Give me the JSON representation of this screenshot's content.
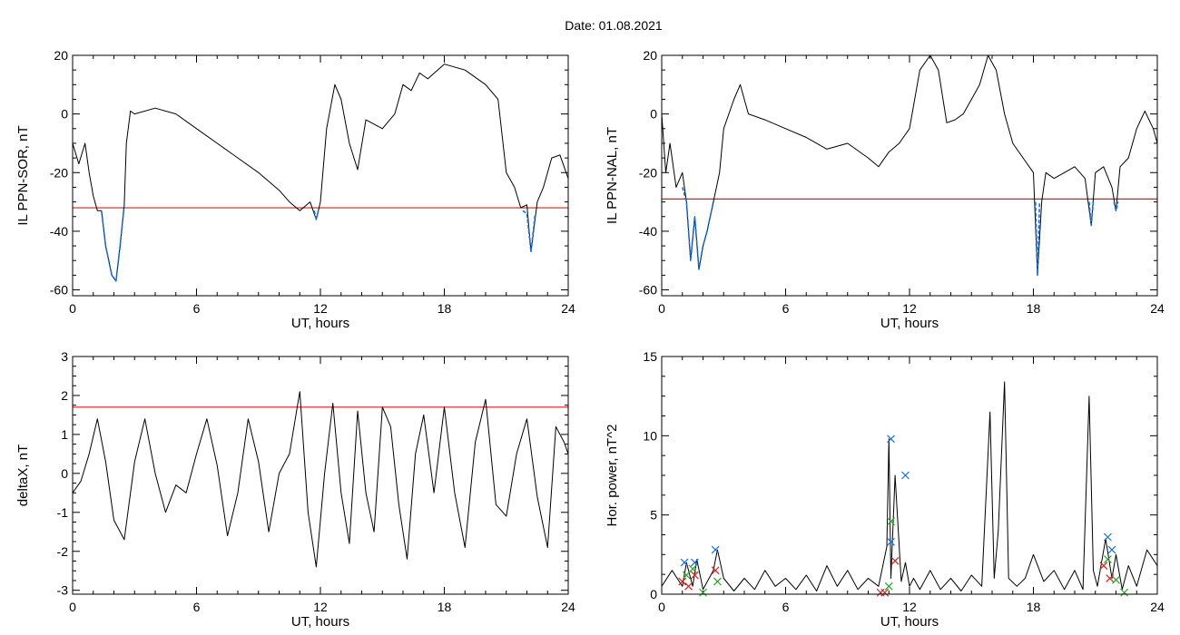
{
  "title": "Date:  01.08.2021",
  "colors": {
    "trace": "#000000",
    "threshold": "#d42020",
    "highlight": "#1a6fd4",
    "marker_blue": "#1a6fd4",
    "marker_red": "#d42020",
    "marker_green": "#2aa02a"
  },
  "chart_data": [
    {
      "type": "line",
      "panel": "top-left",
      "xlabel": "UT, hours",
      "ylabel": "IL PPN-SOR, nT",
      "xlim": [
        0,
        24
      ],
      "ylim": [
        -62,
        20
      ],
      "xticks": [
        "0",
        "6",
        "12",
        "18",
        "24"
      ],
      "yticks": [
        "-60",
        "-40",
        "-20",
        "0",
        "20"
      ],
      "threshold": -32,
      "series": [
        {
          "x": [
            0,
            0.3,
            0.6,
            0.8,
            1.0,
            1.2,
            1.4,
            1.6,
            1.9,
            2.1,
            2.3,
            2.5,
            2.6,
            2.8,
            3.0,
            4.0,
            5.0,
            6.0,
            7.0,
            8.0,
            9.0,
            10.0,
            10.5,
            11.0,
            11.5,
            11.8,
            12.0,
            12.3,
            12.7,
            13.0,
            13.4,
            13.8,
            14.2,
            15.0,
            15.6,
            16.0,
            16.4,
            16.8,
            17.2,
            18.0,
            19.0,
            20.0,
            20.6,
            21.0,
            21.4,
            21.7,
            22.0,
            22.2,
            22.5,
            22.8,
            23.2,
            23.6,
            24.0
          ],
          "y": [
            -10,
            -17,
            -10,
            -20,
            -28,
            -33,
            -33,
            -45,
            -55,
            -57,
            -45,
            -31,
            -10,
            1,
            0,
            2,
            0,
            -5,
            -10,
            -15,
            -20,
            -26,
            -30,
            -33,
            -30,
            -36,
            -30,
            -5,
            10,
            5,
            -10,
            -19,
            -2,
            -5,
            0,
            10,
            8,
            14,
            12,
            17,
            15,
            10,
            5,
            -20,
            -25,
            -32,
            -31,
            -47,
            -30,
            -25,
            -15,
            -14,
            -22
          ]
        },
        {
          "x": [
            1.4,
            1.6,
            1.9,
            2.1,
            2.3,
            2.5
          ],
          "y": [
            -33,
            -45,
            -55,
            -57,
            -45,
            -31
          ]
        },
        {
          "x": [
            11.7,
            11.8,
            11.9
          ],
          "y": [
            -33,
            -36,
            -33
          ]
        },
        {
          "x": [
            21.8,
            22.0,
            22.2,
            22.4
          ],
          "y": [
            -33,
            -34,
            -47,
            -34
          ]
        }
      ]
    },
    {
      "type": "line",
      "panel": "top-right",
      "xlabel": "UT, hours",
      "ylabel": "IL PPN-NAL, nT",
      "xlim": [
        0,
        24
      ],
      "ylim": [
        -62,
        20
      ],
      "xticks": [
        "0",
        "6",
        "12",
        "18",
        "24"
      ],
      "yticks": [
        "-60",
        "-40",
        "-20",
        "0",
        "20"
      ],
      "threshold": -29,
      "series": [
        {
          "x": [
            0,
            0.2,
            0.4,
            0.7,
            1.0,
            1.2,
            1.4,
            1.6,
            1.8,
            2.0,
            2.2,
            2.5,
            2.8,
            3.0,
            3.5,
            3.8,
            4.2,
            5.0,
            6.0,
            7.0,
            8.0,
            9.0,
            10.0,
            10.5,
            11.0,
            11.5,
            12.0,
            12.5,
            13.0,
            13.4,
            13.8,
            14.2,
            14.6,
            15.0,
            15.4,
            15.8,
            16.2,
            16.6,
            17.0,
            17.5,
            18.0,
            18.2,
            18.4,
            18.6,
            19.0,
            20.0,
            20.5,
            20.8,
            21.0,
            21.4,
            21.8,
            22.0,
            22.2,
            22.6,
            23.0,
            23.4,
            23.8,
            24.0
          ],
          "y": [
            0,
            -20,
            -10,
            -25,
            -20,
            -30,
            -50,
            -35,
            -53,
            -45,
            -40,
            -30,
            -20,
            -5,
            5,
            10,
            0,
            -2,
            -5,
            -8,
            -12,
            -10,
            -15,
            -18,
            -13,
            -10,
            -5,
            15,
            20,
            15,
            -3,
            -2,
            0,
            5,
            10,
            20,
            15,
            0,
            -10,
            -15,
            -20,
            -55,
            -30,
            -20,
            -22,
            -18,
            -22,
            -38,
            -20,
            -18,
            -25,
            -33,
            -18,
            -15,
            -5,
            1,
            -5,
            -10
          ]
        },
        {
          "x": [
            1.0,
            1.2,
            1.4,
            1.6,
            1.8,
            2.0,
            2.2,
            2.5
          ],
          "y": [
            -25,
            -30,
            -50,
            -35,
            -53,
            -45,
            -40,
            -30
          ]
        },
        {
          "x": [
            18.1,
            18.2,
            18.3
          ],
          "y": [
            -30,
            -55,
            -30
          ]
        },
        {
          "x": [
            20.7,
            20.8,
            20.9
          ],
          "y": [
            -30,
            -38,
            -30
          ]
        },
        {
          "x": [
            21.9,
            22.0,
            22.1
          ],
          "y": [
            -30,
            -33,
            -30
          ]
        }
      ]
    },
    {
      "type": "line",
      "panel": "bottom-left",
      "xlabel": "UT, hours",
      "ylabel": "deltaX, nT",
      "xlim": [
        0,
        24
      ],
      "ylim": [
        -3.1,
        3
      ],
      "xticks": [
        "0",
        "6",
        "12",
        "18",
        "24"
      ],
      "yticks": [
        "-3",
        "-2",
        "-1",
        "0",
        "1",
        "2",
        "3"
      ],
      "threshold": 1.7,
      "series": [
        {
          "x": [
            0,
            0.4,
            0.8,
            1.2,
            1.6,
            2.0,
            2.5,
            3.0,
            3.5,
            4.0,
            4.5,
            5.0,
            5.5,
            6.0,
            6.5,
            7.0,
            7.5,
            8.0,
            8.5,
            9.0,
            9.5,
            10.0,
            10.5,
            11.0,
            11.4,
            11.8,
            12.2,
            12.6,
            13.0,
            13.4,
            13.8,
            14.2,
            14.6,
            15.0,
            15.4,
            15.8,
            16.2,
            16.6,
            17.0,
            17.5,
            18.0,
            18.5,
            19.0,
            19.5,
            20.0,
            20.5,
            21.0,
            21.5,
            22.0,
            22.5,
            23.0,
            23.4,
            23.8,
            24.0
          ],
          "y": [
            -0.5,
            -0.2,
            0.5,
            1.4,
            0.3,
            -1.2,
            -1.7,
            0.3,
            1.4,
            0,
            -1.0,
            -0.3,
            -0.5,
            0.5,
            1.4,
            0.2,
            -1.6,
            -0.5,
            1.4,
            0.3,
            -1.5,
            0,
            0.5,
            2.1,
            -1.0,
            -2.4,
            0,
            1.8,
            -0.5,
            -1.8,
            1.6,
            -0.5,
            -1.5,
            1.7,
            1.2,
            -0.8,
            -2.2,
            0.5,
            1.5,
            -0.5,
            1.7,
            -0.5,
            -1.9,
            0.8,
            1.9,
            -0.8,
            -1.1,
            0.5,
            1.4,
            -0.6,
            -1.9,
            1.2,
            0.8,
            0.5
          ]
        }
      ]
    },
    {
      "type": "line",
      "panel": "bottom-right",
      "xlabel": "UT, hours",
      "ylabel": "Hor. power, nT^2",
      "xlim": [
        0,
        24
      ],
      "ylim": [
        0,
        15
      ],
      "xticks": [
        "0",
        "6",
        "12",
        "18",
        "24"
      ],
      "yticks": [
        "0",
        "5",
        "10",
        "15"
      ],
      "series": [
        {
          "x": [
            0,
            0.5,
            1.0,
            1.2,
            1.5,
            1.7,
            2.0,
            2.5,
            2.7,
            3.0,
            3.5,
            4.0,
            4.5,
            5.0,
            5.5,
            6.0,
            6.5,
            7.0,
            7.5,
            8.0,
            8.5,
            9.0,
            9.5,
            10.0,
            10.5,
            10.9,
            11.0,
            11.1,
            11.3,
            11.6,
            11.8,
            12.0,
            12.2,
            12.5,
            13.0,
            13.5,
            14.0,
            14.5,
            15.0,
            15.5,
            15.9,
            16.1,
            16.3,
            16.6,
            16.8,
            17.2,
            17.6,
            18.0,
            18.5,
            19.0,
            19.5,
            20.0,
            20.4,
            20.7,
            20.9,
            21.1,
            21.5,
            21.8,
            22.0,
            22.3,
            22.6,
            23.0,
            23.5,
            24.0
          ],
          "y": [
            0.5,
            1.5,
            0.5,
            2.0,
            0.5,
            2.2,
            0.3,
            1.5,
            2.8,
            1.0,
            0.2,
            1.0,
            0.3,
            1.5,
            0.5,
            1.0,
            0.3,
            1.2,
            0.2,
            1.8,
            0.5,
            1.5,
            0.3,
            1.0,
            0.5,
            3.0,
            9.8,
            1.0,
            7.5,
            0.8,
            2.0,
            0.5,
            1.0,
            0.3,
            1.5,
            0.3,
            1.0,
            0.2,
            1.2,
            0.5,
            11.5,
            1.0,
            4.0,
            13.4,
            1.0,
            0.5,
            1.0,
            2.5,
            0.8,
            1.5,
            0.3,
            1.5,
            0.3,
            12.5,
            1.5,
            0.5,
            3.5,
            1.0,
            2.5,
            0.3,
            1.8,
            0.5,
            2.8,
            1.8
          ]
        }
      ],
      "markers": [
        {
          "color": "blue",
          "x": [
            1.1,
            1.6,
            2.6,
            11.1,
            11.1,
            11.8,
            21.6,
            21.8
          ],
          "y": [
            2.0,
            2.0,
            2.8,
            9.8,
            3.3,
            7.5,
            3.6,
            2.8
          ]
        },
        {
          "color": "red",
          "x": [
            1.0,
            1.3,
            1.6,
            2.6,
            10.6,
            10.8,
            11.3,
            21.4,
            21.7
          ],
          "y": [
            0.8,
            0.5,
            1.2,
            1.5,
            0.1,
            0.1,
            2.1,
            1.8,
            1.0
          ]
        },
        {
          "color": "green",
          "x": [
            1.2,
            1.5,
            2.0,
            2.7,
            11.1,
            11.0,
            21.6,
            22.0,
            22.4
          ],
          "y": [
            1.2,
            1.6,
            0.1,
            0.8,
            4.6,
            0.5,
            2.2,
            0.9,
            0.1
          ]
        }
      ]
    }
  ]
}
